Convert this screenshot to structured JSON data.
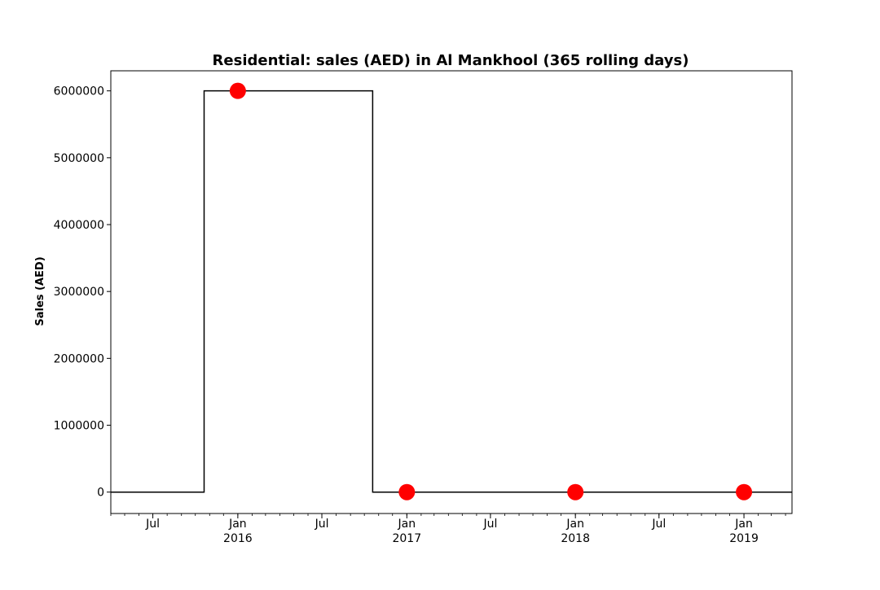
{
  "chart_data": {
    "type": "line",
    "title": "Residential: sales (AED) in Al Mankhool (365 rolling days)",
    "xlabel": "",
    "ylabel": "Sales (AED)",
    "xlim": [
      "2015-04-01",
      "2019-04-15"
    ],
    "ylim": [
      -320000,
      6300000
    ],
    "y_ticks": [
      0,
      1000000,
      2000000,
      3000000,
      4000000,
      5000000,
      6000000
    ],
    "y_tick_labels": [
      "0",
      "1000000",
      "2000000",
      "3000000",
      "4000000",
      "5000000",
      "6000000"
    ],
    "x_ticks": [
      {
        "date": "2015-07-01",
        "label": "Jul",
        "year": ""
      },
      {
        "date": "2016-01-01",
        "label": "Jan",
        "year": "2016"
      },
      {
        "date": "2016-07-01",
        "label": "Jul",
        "year": ""
      },
      {
        "date": "2017-01-01",
        "label": "Jan",
        "year": "2017"
      },
      {
        "date": "2017-07-01",
        "label": "Jul",
        "year": ""
      },
      {
        "date": "2018-01-01",
        "label": "Jan",
        "year": "2018"
      },
      {
        "date": "2018-07-01",
        "label": "Jul",
        "year": ""
      },
      {
        "date": "2019-01-01",
        "label": "Jan",
        "year": "2019"
      }
    ],
    "grid": false,
    "series": [
      {
        "style": "step",
        "color": "#000000",
        "points": [
          {
            "x": "2015-04-01",
            "y": 0
          },
          {
            "x": "2015-10-20",
            "y": 0
          },
          {
            "x": "2015-10-20",
            "y": 6000000
          },
          {
            "x": "2016-10-19",
            "y": 6000000
          },
          {
            "x": "2016-10-19",
            "y": 0
          },
          {
            "x": "2019-04-15",
            "y": 0
          }
        ]
      },
      {
        "style": "markers",
        "color": "#ff0000",
        "points": [
          {
            "x": "2016-01-01",
            "y": 6000000
          },
          {
            "x": "2017-01-01",
            "y": 0
          },
          {
            "x": "2018-01-01",
            "y": 0
          },
          {
            "x": "2019-01-01",
            "y": 0
          }
        ]
      }
    ]
  }
}
